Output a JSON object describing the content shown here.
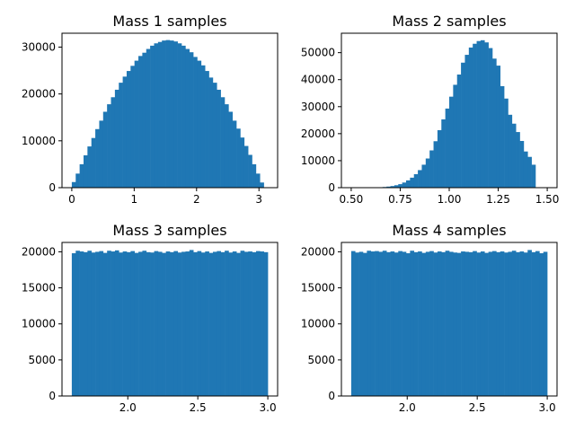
{
  "bar_color": "#1f77b4",
  "chart_data": [
    {
      "type": "bar",
      "title": "Mass 1 samples",
      "xlabel": "",
      "ylabel": "",
      "xlim": [
        -0.157,
        3.299
      ],
      "ylim": [
        0,
        32960
      ],
      "xticks": [
        0,
        1,
        2,
        3
      ],
      "xtick_labels": [
        "0",
        "1",
        "2",
        "3"
      ],
      "yticks": [
        0,
        10000,
        20000,
        30000
      ],
      "ytick_labels": [
        "0",
        "10000",
        "20000",
        "30000"
      ],
      "bin_start": 0.0,
      "bin_width": 0.0628,
      "values": [
        1200,
        3000,
        5000,
        6900,
        8800,
        10600,
        12500,
        14300,
        16200,
        17800,
        19300,
        20900,
        22400,
        23700,
        24900,
        26000,
        27100,
        28100,
        28800,
        29600,
        30300,
        30800,
        31100,
        31400,
        31500,
        31400,
        31200,
        30800,
        30300,
        29600,
        28900,
        27900,
        27100,
        26100,
        24900,
        23500,
        22400,
        20900,
        19300,
        17800,
        16200,
        14300,
        12600,
        10700,
        8900,
        7000,
        5000,
        3000,
        1100
      ]
    },
    {
      "type": "bar",
      "title": "Mass 2 samples",
      "xlabel": "",
      "ylabel": "",
      "xlim": [
        0.45,
        1.55
      ],
      "ylim": [
        0,
        57200
      ],
      "xticks": [
        0.5,
        0.75,
        1.0,
        1.25,
        1.5
      ],
      "xtick_labels": [
        "0.50",
        "0.75",
        "1.00",
        "1.25",
        "1.50"
      ],
      "yticks": [
        0,
        10000,
        20000,
        30000,
        40000,
        50000
      ],
      "ytick_labels": [
        "0",
        "10000",
        "20000",
        "30000",
        "40000",
        "50000"
      ],
      "bin_start": 0.5,
      "bin_width": 0.02,
      "values": [
        0,
        0,
        0,
        0,
        0,
        50,
        100,
        150,
        250,
        400,
        600,
        900,
        1300,
        1900,
        2700,
        3700,
        5000,
        6500,
        8500,
        10800,
        13800,
        17200,
        21300,
        25300,
        29300,
        33700,
        38100,
        41900,
        46300,
        49200,
        51900,
        53300,
        54300,
        54600,
        53800,
        51700,
        47800,
        45200,
        37600,
        33000,
        27000,
        23700,
        20600,
        17300,
        13400,
        11400,
        8500
      ]
    },
    {
      "type": "bar",
      "title": "Mass 3 samples",
      "xlabel": "",
      "ylabel": "",
      "xlim": [
        1.53,
        3.07
      ],
      "ylim": [
        0,
        21300
      ],
      "xticks": [
        2.0,
        2.5,
        3.0
      ],
      "xtick_labels": [
        "2.0",
        "2.5",
        "3.0"
      ],
      "yticks": [
        0,
        5000,
        10000,
        15000,
        20000
      ],
      "ytick_labels": [
        "0",
        "5000",
        "10000",
        "15000",
        "20000"
      ],
      "bin_start": 1.6,
      "bin_width": 0.028,
      "values": [
        19800,
        20150,
        20050,
        19950,
        20150,
        19900,
        20000,
        20100,
        19850,
        20150,
        20050,
        20200,
        19900,
        20050,
        19950,
        20100,
        19850,
        20000,
        20150,
        19950,
        19900,
        20100,
        20000,
        19850,
        20050,
        19950,
        20100,
        19900,
        20000,
        20050,
        20250,
        19950,
        20100,
        19900,
        20050,
        19850,
        20000,
        20100,
        19950,
        20150,
        19900,
        20050,
        19850,
        20150,
        20000,
        20050,
        19950,
        20100,
        20050,
        19950
      ]
    },
    {
      "type": "bar",
      "title": "Mass 4 samples",
      "xlabel": "",
      "ylabel": "",
      "xlim": [
        1.53,
        3.07
      ],
      "ylim": [
        0,
        21300
      ],
      "xticks": [
        2.0,
        2.5,
        3.0
      ],
      "xtick_labels": [
        "2.0",
        "2.5",
        "3.0"
      ],
      "yticks": [
        0,
        5000,
        10000,
        15000,
        20000
      ],
      "ytick_labels": [
        "0",
        "5000",
        "10000",
        "15000",
        "20000"
      ],
      "bin_start": 1.6,
      "bin_width": 0.028,
      "values": [
        20100,
        19900,
        20000,
        19850,
        20150,
        20050,
        20100,
        20000,
        20150,
        19950,
        20050,
        19900,
        20100,
        20000,
        19800,
        20150,
        19950,
        20050,
        19850,
        20000,
        20100,
        19900,
        20050,
        19950,
        20150,
        20000,
        19900,
        19850,
        20050,
        20000,
        19950,
        20100,
        19900,
        20050,
        19850,
        20000,
        20100,
        19950,
        20050,
        19900,
        20000,
        20150,
        19950,
        20050,
        19900,
        20250,
        19950,
        20100,
        19800,
        20000
      ]
    }
  ]
}
